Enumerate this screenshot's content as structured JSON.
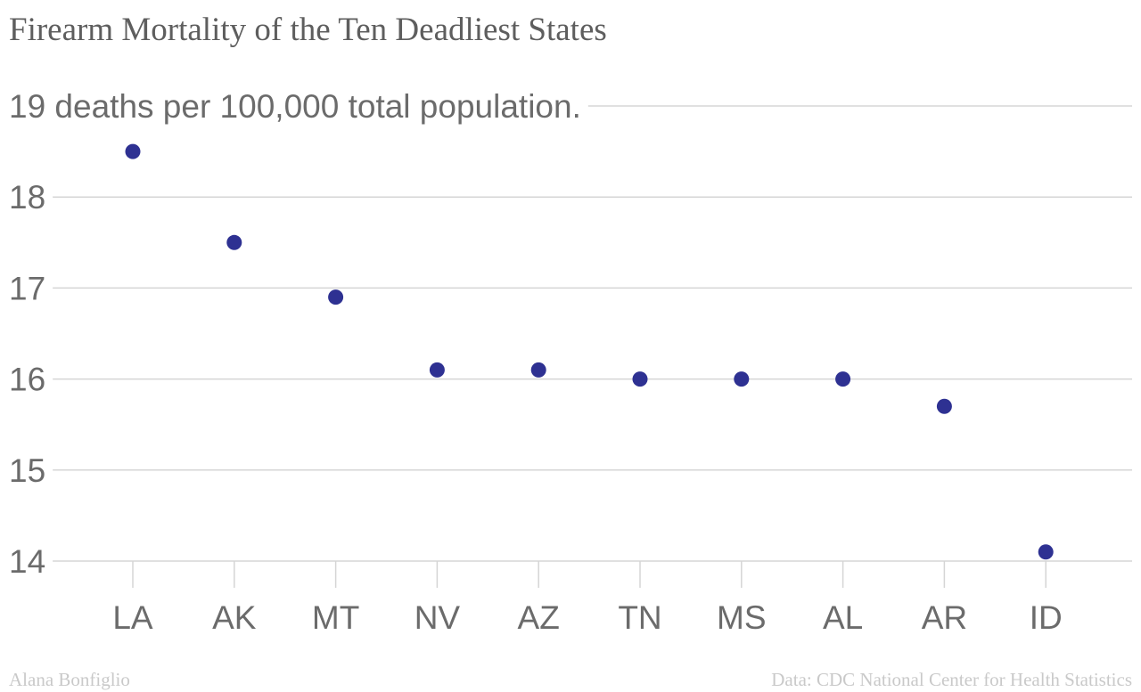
{
  "header": {
    "title": "Firearm Mortality of the Ten Deadliest States"
  },
  "footer": {
    "credit": "Alana Bonfiglio",
    "source": "Data: CDC National Center for Health Statistics"
  },
  "colors": {
    "dot": "#2e3192",
    "grid": "#d5d5d5",
    "text": "#6b6b6b"
  },
  "chart_data": {
    "type": "scatter",
    "title": "Firearm Mortality of the Ten Deadliest States",
    "ylabel": "deaths per 100,000 total population.",
    "categories": [
      "LA",
      "AK",
      "MT",
      "NV",
      "AZ",
      "TN",
      "MS",
      "AL",
      "AR",
      "ID"
    ],
    "values": [
      18.5,
      17.5,
      16.9,
      16.1,
      16.1,
      16.0,
      16.0,
      16.0,
      15.7,
      14.1
    ],
    "yticks": [
      {
        "value": 19,
        "label": "19 deaths per 100,000 total population."
      },
      {
        "value": 18,
        "label": "18"
      },
      {
        "value": 17,
        "label": "17"
      },
      {
        "value": 16,
        "label": "16"
      },
      {
        "value": 15,
        "label": "15"
      },
      {
        "value": 14,
        "label": "14"
      }
    ],
    "ylim": [
      14,
      19
    ],
    "grid": true,
    "legend": false
  }
}
